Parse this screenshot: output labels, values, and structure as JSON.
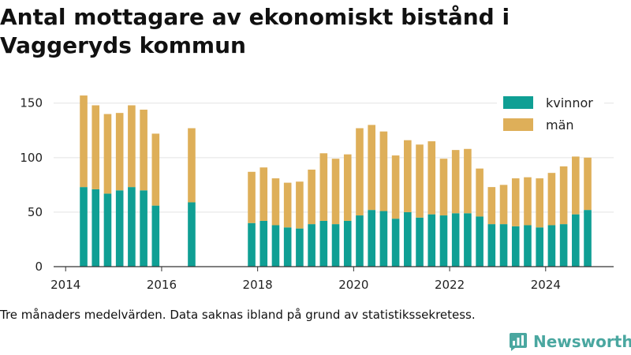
{
  "chart_data": {
    "type": "bar",
    "stacked": true,
    "title": "Antal mottagare av ekonomiskt bistånd i Vaggeryds kommun",
    "note": "Tre månaders medelvärden. Data saknas ibland på grund av statistikssekretess.",
    "xlim": [
      "2013-10",
      "2025-06"
    ],
    "ylim": [
      0,
      165
    ],
    "x_ticks": [
      "2014",
      "2016",
      "2018",
      "2020",
      "2022",
      "2024"
    ],
    "y_ticks": [
      "0",
      "50",
      "100",
      "150"
    ],
    "grid": "horizontal",
    "legend_position": "top-right",
    "x": [
      "2014-Q2",
      "2014-Q3",
      "2014-Q4",
      "2015-Q1",
      "2015-Q2",
      "2015-Q3",
      "2015-Q4",
      "2016-Q3",
      "2017-Q4",
      "2018-Q1",
      "2018-Q2",
      "2018-Q3",
      "2018-Q4",
      "2019-Q1",
      "2019-Q2",
      "2019-Q3",
      "2019-Q4",
      "2020-Q1",
      "2020-Q2",
      "2020-Q3",
      "2020-Q4",
      "2021-Q1",
      "2021-Q2",
      "2021-Q3",
      "2021-Q4",
      "2022-Q1",
      "2022-Q2",
      "2022-Q3",
      "2022-Q4",
      "2023-Q1",
      "2023-Q2",
      "2023-Q3",
      "2023-Q4",
      "2024-Q1",
      "2024-Q2",
      "2024-Q3",
      "2024-Q4"
    ],
    "series": [
      {
        "name": "kvinnor",
        "color": "#0f9f94",
        "values": [
          73,
          71,
          67,
          70,
          73,
          70,
          56,
          59,
          40,
          42,
          38,
          36,
          35,
          39,
          42,
          39,
          42,
          47,
          52,
          51,
          44,
          50,
          45,
          48,
          47,
          49,
          49,
          46,
          39,
          39,
          37,
          38,
          36,
          38,
          39,
          48,
          52
        ]
      },
      {
        "name": "män",
        "color": "#deaf59",
        "values": [
          84,
          77,
          73,
          71,
          75,
          74,
          66,
          68,
          47,
          49,
          43,
          41,
          43,
          50,
          62,
          60,
          61,
          80,
          78,
          73,
          58,
          66,
          67,
          67,
          52,
          58,
          59,
          44,
          34,
          36,
          44,
          44,
          45,
          48,
          53,
          53,
          48
        ]
      }
    ]
  },
  "brand": {
    "name": "Newsworthy"
  }
}
